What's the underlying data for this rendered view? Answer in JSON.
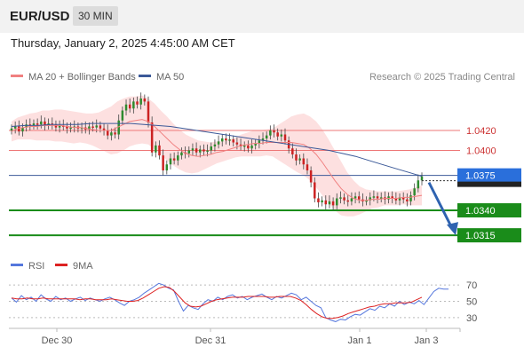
{
  "header": {
    "symbol": "EUR/USD",
    "timeframe": "30 MIN",
    "datetime": "Thursday, January 2, 2025 4:45:00 AM CET"
  },
  "legend": {
    "ma20": "MA 20 + Bollinger Bands",
    "ma50": "MA 50",
    "copyright": "Research © 2025 Trading Central"
  },
  "rsi_legend": {
    "rsi": "RSI",
    "ma": "9MA"
  },
  "colors": {
    "ma20": "#f08080",
    "ma50": "#3b5998",
    "band_fill": "#fde0e0",
    "resistance": "#ee7777",
    "support": "#1a8c1a",
    "pivot": "#3b5998",
    "current_price_badge": "#2a6fdb",
    "arrow": "#2f63b0",
    "candle_up": "#2e8b2e",
    "candle_down": "#cc2222",
    "rsi_line": "#5577dd",
    "rsi_ma": "#dd2222"
  },
  "chart_data": {
    "type": "candlestick",
    "x_tick_labels": [
      "Dec 30",
      "Dec 31",
      "Jan 1",
      "Jan 3"
    ],
    "price_range": [
      1.03,
      1.046
    ],
    "levels": [
      {
        "label": "1.0420",
        "value": 1.042,
        "type": "resistance"
      },
      {
        "label": "1.0400",
        "value": 1.04,
        "type": "resistance"
      },
      {
        "label": "1.0375",
        "value": 1.0375,
        "type": "pivot"
      },
      {
        "label": "1.0340",
        "value": 1.034,
        "type": "support"
      },
      {
        "label": "1.0315",
        "value": 1.0315,
        "type": "support"
      }
    ],
    "current_price": {
      "label": "1.0375",
      "value": 1.0375
    },
    "close_series": [
      1.0422,
      1.0424,
      1.0419,
      1.0423,
      1.0426,
      1.0425,
      1.0427,
      1.0426,
      1.0429,
      1.0425,
      1.0427,
      1.0426,
      1.0423,
      1.0425,
      1.0424,
      1.0422,
      1.0423,
      1.0424,
      1.0422,
      1.0423,
      1.0421,
      1.0424,
      1.0423,
      1.0425,
      1.0422,
      1.042,
      1.0415,
      1.0418,
      1.0416,
      1.043,
      1.044,
      1.0446,
      1.0442,
      1.0449,
      1.0446,
      1.0452,
      1.0449,
      1.0428,
      1.0398,
      1.0405,
      1.0395,
      1.038,
      1.0386,
      1.0392,
      1.039,
      1.0395,
      1.0398,
      1.0397,
      1.04,
      1.0402,
      1.0398,
      1.0401,
      1.0399,
      1.04,
      1.0404,
      1.0406,
      1.0409,
      1.0412,
      1.041,
      1.0411,
      1.0408,
      1.0406,
      1.0404,
      1.0405,
      1.0402,
      1.0405,
      1.0407,
      1.041,
      1.0412,
      1.0415,
      1.042,
      1.0418,
      1.0414,
      1.0416,
      1.041,
      1.0402,
      1.0396,
      1.039,
      1.0392,
      1.0386,
      1.038,
      1.0368,
      1.0352,
      1.0348,
      1.035,
      1.0346,
      1.0349,
      1.0345,
      1.0352,
      1.0353,
      1.035,
      1.0349,
      1.0352,
      1.0354,
      1.0351,
      1.0349,
      1.035,
      1.0353,
      1.0354,
      1.0352,
      1.0353,
      1.0351,
      1.0354,
      1.0352,
      1.035,
      1.0353,
      1.0351,
      1.0349,
      1.0355,
      1.0362,
      1.037,
      1.0374
    ],
    "ma20_series": [
      1.0419,
      1.0422,
      1.0423,
      1.0424,
      1.0424,
      1.0425,
      1.0425,
      1.0425,
      1.0425,
      1.0424,
      1.0423,
      1.0423,
      1.0422,
      1.0421,
      1.042,
      1.042,
      1.042,
      1.0423,
      1.0426,
      1.0429,
      1.043,
      1.0431,
      1.0429,
      1.0424,
      1.0418,
      1.0412,
      1.0406,
      1.0401,
      1.0397,
      1.0395,
      1.0394,
      1.0395,
      1.0396,
      1.0398,
      1.0399,
      1.0401,
      1.0403,
      1.0405,
      1.0406,
      1.0407,
      1.0407,
      1.0408,
      1.0408,
      1.0408,
      1.0408,
      1.0408,
      1.0407,
      1.0406,
      1.0402,
      1.0396,
      1.0388,
      1.0379,
      1.037,
      1.0362,
      1.0356,
      1.0352,
      1.035,
      1.035,
      1.0351,
      1.0351,
      1.0352,
      1.0352,
      1.0352,
      1.0353,
      1.0353,
      1.0354,
      1.0355
    ],
    "ma50_series": [
      1.0424,
      1.0425,
      1.0425,
      1.0426,
      1.0426,
      1.0426,
      1.0427,
      1.0427,
      1.0427,
      1.0427,
      1.0426,
      1.0425,
      1.0424,
      1.0422,
      1.042,
      1.0418,
      1.0416,
      1.0414,
      1.0412,
      1.041,
      1.0408,
      1.0406,
      1.0404,
      1.0402,
      1.04,
      1.0397,
      1.0394,
      1.039,
      1.0386,
      1.0382,
      1.0378,
      1.0374
    ],
    "rsi_axis": [
      "70",
      "50",
      "30"
    ],
    "rsi_range": [
      20,
      80
    ],
    "rsi_series": [
      54,
      49,
      57,
      52,
      55,
      50,
      58,
      53,
      50,
      56,
      52,
      54,
      50,
      53,
      55,
      51,
      54,
      52,
      50,
      53,
      55,
      52,
      48,
      45,
      50,
      52,
      55,
      60,
      64,
      68,
      72,
      70,
      66,
      64,
      50,
      38,
      45,
      42,
      40,
      47,
      52,
      50,
      55,
      52,
      56,
      58,
      54,
      56,
      52,
      55,
      57,
      59,
      55,
      52,
      56,
      54,
      57,
      60,
      58,
      52,
      55,
      50,
      45,
      42,
      30,
      27,
      25,
      28,
      27,
      31,
      34,
      33,
      37,
      41,
      39,
      44,
      42,
      47,
      44,
      50,
      46,
      49,
      47,
      51,
      46,
      54,
      62,
      66,
      65,
      65
    ],
    "rsi_ma_series": [
      54,
      53,
      53,
      54,
      53,
      53,
      54,
      53,
      53,
      53,
      53,
      53,
      53,
      52,
      53,
      53,
      52,
      52,
      52,
      53,
      52,
      51,
      50,
      50,
      51,
      54,
      58,
      62,
      66,
      68,
      67,
      62,
      55,
      48,
      44,
      43,
      44,
      47,
      50,
      52,
      53,
      54,
      55,
      55,
      55,
      56,
      56,
      56,
      56,
      55,
      55,
      56,
      56,
      56,
      54,
      51,
      46,
      40,
      35,
      31,
      29,
      29,
      30,
      32,
      35,
      37,
      39,
      41,
      43,
      44,
      46,
      47,
      47,
      48,
      48,
      48,
      49,
      52,
      55
    ]
  }
}
